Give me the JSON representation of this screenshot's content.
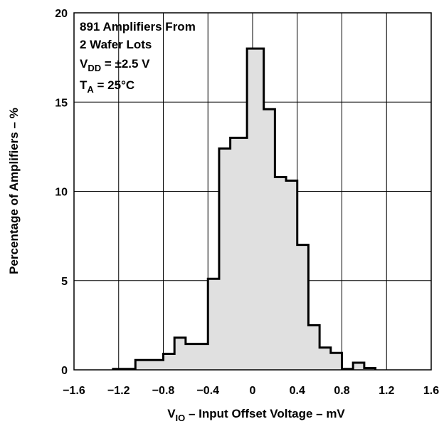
{
  "chart_data": {
    "type": "bar",
    "bin_width_mV": 0.05,
    "bin_edges_mV": [
      -1.25,
      -1.2,
      -1.15,
      -1.1,
      -1.05,
      -1.0,
      -0.95,
      -0.9,
      -0.85,
      -0.8,
      -0.75,
      -0.7,
      -0.65,
      -0.6,
      -0.55,
      -0.5,
      -0.45,
      -0.4,
      -0.35,
      -0.3,
      -0.25,
      -0.2,
      -0.15,
      -0.1,
      -0.05,
      0.0,
      0.05,
      0.1,
      0.15,
      0.2,
      0.25,
      0.3,
      0.35,
      0.4,
      0.45,
      0.5,
      0.55,
      0.6,
      0.65,
      0.7,
      0.75,
      0.8,
      0.85,
      0.9,
      0.95,
      1.0,
      1.05,
      1.1
    ],
    "values": [
      0.05,
      0.05,
      0.05,
      0.05,
      0.55,
      0.55,
      0.55,
      0.55,
      0.55,
      0.9,
      0.9,
      1.8,
      1.8,
      1.45,
      1.45,
      1.45,
      1.45,
      5.1,
      5.1,
      12.4,
      12.4,
      13.0,
      13.0,
      13.0,
      18.0,
      18.0,
      18.0,
      14.6,
      14.6,
      10.8,
      10.8,
      10.6,
      10.6,
      7.0,
      7.0,
      2.5,
      2.5,
      1.25,
      1.25,
      0.95,
      0.95,
      0.05,
      0.05,
      0.4,
      0.4,
      0.1,
      0.1
    ],
    "xlim": [
      -1.6,
      1.6
    ],
    "ylim": [
      0,
      20
    ],
    "x_ticks": [
      "−1.6",
      "−1.2",
      "−0.8",
      "−0.4",
      "0",
      "0.4",
      "0.8",
      "1.2",
      "1.6"
    ],
    "y_ticks": [
      "0",
      "5",
      "10",
      "15",
      "20"
    ],
    "xlabel": {
      "main": "V",
      "sub": "IO",
      "rest": " – Input Offset Voltage – mV"
    },
    "ylabel": "Percentage of Amplifiers – %",
    "grid": true,
    "fill_color": "#e0e0e0",
    "line_color": "#000000",
    "annotation": {
      "line1": "891 Amplifiers From",
      "line2": "2 Wafer Lots",
      "line3": {
        "main": "V",
        "sub": "DD",
        "rest": " = ±2.5 V"
      },
      "line4": {
        "main": "T",
        "sub": "A",
        "rest": " = 25°C"
      }
    }
  }
}
